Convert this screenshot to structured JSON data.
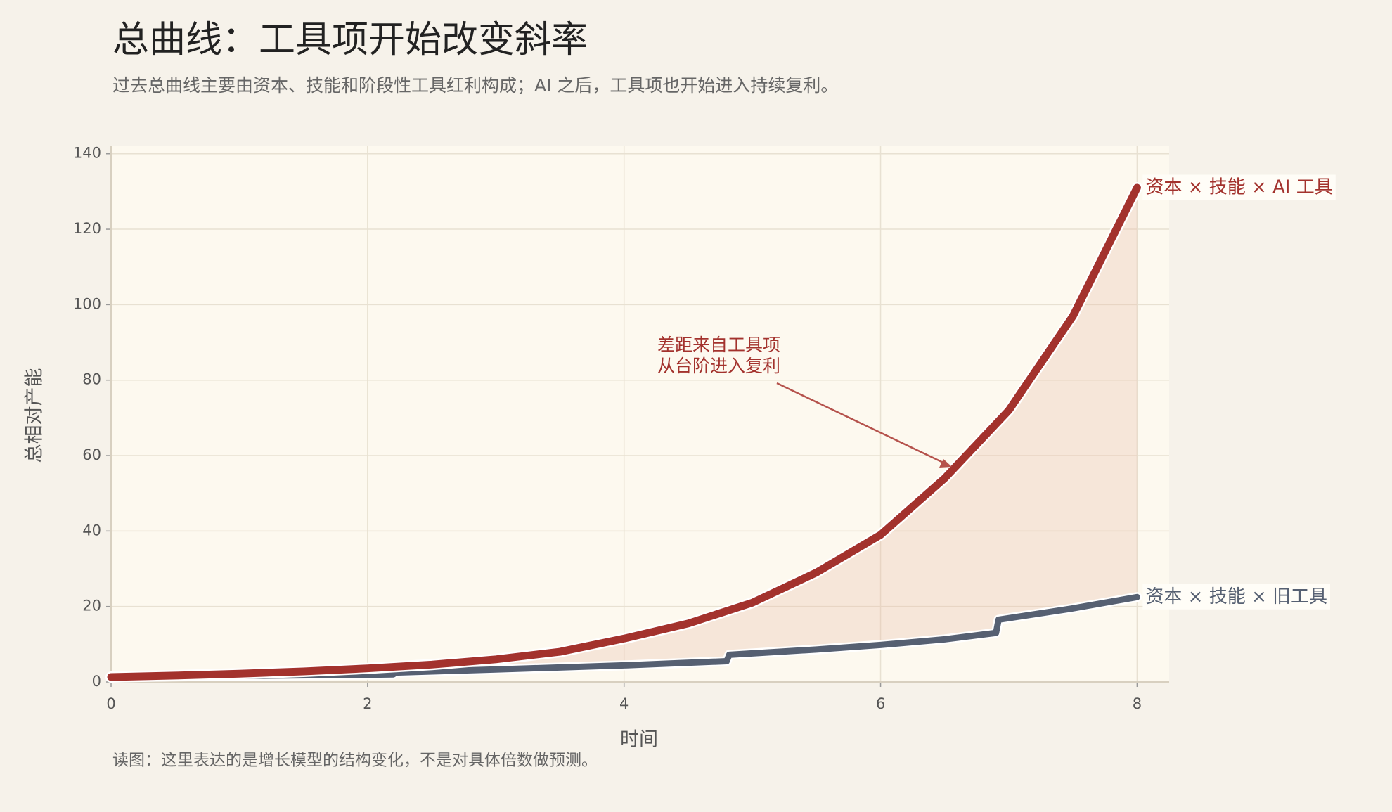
{
  "chart_data": {
    "type": "line",
    "title": "总曲线：工具项开始改变斜率",
    "subtitle": "过去总曲线主要由资本、技能和阶段性工具红利构成；AI 之后，工具项也开始进入持续复利。",
    "x_label": "时间",
    "y_label": "总相对产能",
    "footnote": "读图：这里表达的是增长模型的结构变化，不是对具体倍数做预测。",
    "annotation": [
      "差距来自工具项",
      "从台阶进入复利"
    ],
    "xlim": [
      0,
      8.25
    ],
    "ylim": [
      0,
      142
    ],
    "xticks": [
      0,
      2,
      4,
      6,
      8
    ],
    "yticks": [
      0,
      20,
      40,
      60,
      80,
      100,
      120,
      140
    ],
    "grid": true,
    "fill_between": true,
    "series": [
      {
        "name": "资本 × 技能 × AI 工具",
        "color": "#a3322d",
        "x": [
          0,
          0.5,
          1,
          1.5,
          2,
          2.5,
          3,
          3.5,
          4,
          4.5,
          5,
          5.5,
          6,
          6.5,
          7,
          7.5,
          8
        ],
        "values": [
          1.3,
          1.7,
          2.2,
          2.8,
          3.6,
          4.6,
          6,
          8,
          11.5,
          15.5,
          21,
          29,
          39,
          54,
          72,
          97,
          131
        ]
      },
      {
        "name": "资本 × 技能 × 旧工具",
        "color": "#566072",
        "x": [
          0,
          1,
          2,
          2.2,
          2.22,
          3,
          4,
          4.8,
          4.82,
          5.5,
          6,
          6.5,
          6.9,
          6.92,
          7.5,
          8
        ],
        "values": [
          1.3,
          1.6,
          1.9,
          2.0,
          2.5,
          3.3,
          4.4,
          5.5,
          7.2,
          8.6,
          9.8,
          11.3,
          13,
          16.5,
          19.5,
          22.5
        ]
      }
    ]
  }
}
